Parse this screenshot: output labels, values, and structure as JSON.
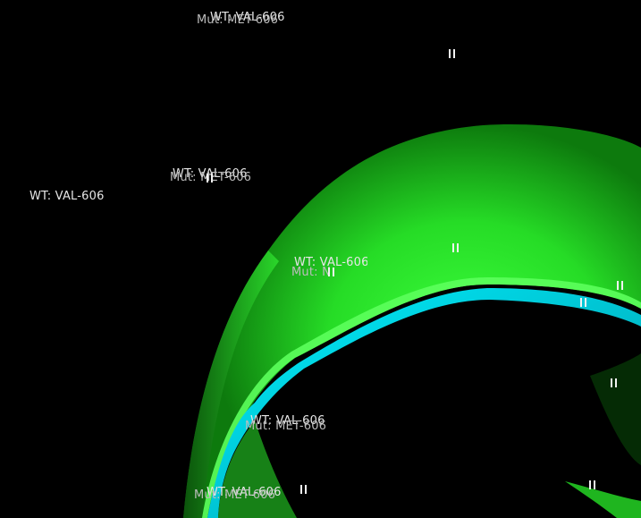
{
  "viewer": {
    "background": "#000000",
    "surface_colors": {
      "ribbon_outer": "#22d822",
      "ribbon_highlight": "#3cff3c",
      "ribbon_inner": "#00e5ee"
    }
  },
  "labels": {
    "wt_val": "WT: VAL-606",
    "mut_met": "Mut: MET-606",
    "mut_partial": "Mut: N"
  },
  "markers": {
    "glyph_name": "atom-marker-icon"
  }
}
